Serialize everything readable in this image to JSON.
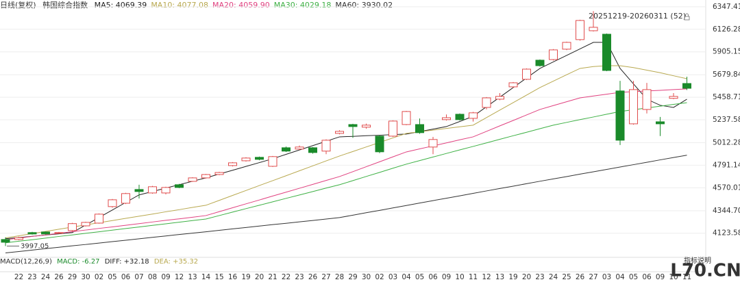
{
  "chart_data": {
    "type": "candlestick",
    "title": "日线(复权)",
    "subtitle": "韩国综合指数",
    "range_label": "20251219-20260311 (52)",
    "indicator_label": "MACD(12,26,9)",
    "indicator_values": [
      "MACD: -6.27",
      "DIFF: +32.18",
      "DEA: +35.32"
    ],
    "indicator_button": "指标说明",
    "watermark": "L70.CN",
    "up_color": "#e04b4b",
    "down_color": "#1a8a2a",
    "categories": [
      null,
      "22",
      "23",
      "24",
      "26",
      "29",
      "30",
      "02",
      "05",
      "06",
      "07",
      "08",
      "09",
      "12",
      "13",
      "14",
      "15",
      "16",
      "19",
      "20",
      "21",
      "22",
      "23",
      "26",
      "27",
      "28",
      "29",
      "30",
      "02",
      "03",
      "04",
      "05",
      "06",
      "09",
      "10",
      "11",
      "12",
      "13",
      "19",
      "20",
      "23",
      "24",
      "25",
      "26",
      "27",
      "03",
      "04",
      "05",
      "06",
      "09",
      "10",
      "11"
    ],
    "open": [
      4062,
      4062,
      4130,
      4136,
      4123,
      4150,
      4196,
      4223,
      4385,
      4418,
      4553,
      4519,
      4519,
      4600,
      4633,
      4667,
      4700,
      4788,
      4835,
      4869,
      4781,
      4963,
      4950,
      4963,
      4930,
      5104,
      5191,
      5165,
      5077,
      5077,
      5191,
      5191,
      4970,
      5239,
      5292,
      5252,
      5359,
      5440,
      5561,
      5635,
      5823,
      5829,
      5931,
      6025,
      6112,
      6078,
      5521,
      5198,
      5339,
      5218,
      5448,
      5594
    ],
    "high": [
      4083,
      4090,
      4137,
      4140,
      4136,
      4225,
      4236,
      4318,
      4460,
      4520,
      4600,
      4588,
      4580,
      4608,
      4673,
      4706,
      4727,
      4822,
      4870,
      4876,
      4882,
      4975,
      4985,
      4970,
      5045,
      5135,
      5198,
      5200,
      5085,
      5232,
      5325,
      5250,
      5070,
      5290,
      5300,
      5315,
      5460,
      5500,
      5608,
      5742,
      5830,
      5932,
      6005,
      6220,
      6305,
      6085,
      5620,
      5620,
      5600,
      5265,
      5500,
      5660
    ],
    "low": [
      3997.05,
      4055,
      4110,
      4112,
      4118,
      4140,
      4190,
      4218,
      4375,
      4410,
      4465,
      4512,
      4505,
      4566,
      4628,
      4660,
      4693,
      4780,
      4828,
      4840,
      4775,
      4922,
      4940,
      4905,
      4900,
      5095,
      5060,
      5150,
      4910,
      5070,
      5185,
      5100,
      4900,
      5230,
      5230,
      5220,
      5340,
      5430,
      5550,
      5628,
      5760,
      5820,
      5922,
      6015,
      6105,
      5715,
      4990,
      5190,
      5300,
      5078,
      5440,
      5530
    ],
    "close": [
      4035,
      4080,
      4116,
      4116,
      4130,
      4218,
      4230,
      4311,
      4452,
      4513,
      4533,
      4580,
      4573,
      4573,
      4667,
      4700,
      4720,
      4815,
      4862,
      4849,
      4876,
      4930,
      4970,
      4916,
      5037,
      5124,
      5171,
      5185,
      4923,
      5225,
      5319,
      5111,
      5044,
      5258,
      5239,
      5306,
      5453,
      5467,
      5601,
      5735,
      5769,
      5924,
      5998,
      6213,
      6146,
      5722,
      5037,
      5534,
      5534,
      5198,
      5467,
      5547
    ],
    "series": [
      {
        "name": "MA5",
        "label": "MA5: 4069.39",
        "color": "#222222",
        "values": [
          4069.39,
          4081,
          4093,
          4106,
          4118,
          4130,
          4204,
          4278,
          4352,
          4426,
          4500,
          4533,
          4567,
          4600,
          4634,
          4667,
          4705,
          4742,
          4780,
          4817,
          4855,
          4898,
          4941,
          4984,
          5027,
          5070,
          5075,
          5081,
          5086,
          5092,
          5097,
          5122,
          5146,
          5171,
          5221,
          5272,
          5366,
          5460,
          5554,
          5648,
          5742,
          5806,
          5870,
          5934,
          5998,
          5998,
          5742,
          5590,
          5440,
          5380,
          5359,
          5440
        ]
      },
      {
        "name": "MA10",
        "label": "MA10: 4077.08",
        "color": "#b8a84e",
        "values": [
          4077.08,
          4098,
          4120,
          4141,
          4163,
          4184,
          4205,
          4227,
          4248,
          4270,
          4291,
          4312,
          4334,
          4355,
          4377,
          4398,
          4446,
          4495,
          4543,
          4592,
          4640,
          4688,
          4737,
          4785,
          4834,
          4882,
          4926,
          4971,
          5015,
          5060,
          5104,
          5120,
          5136,
          5153,
          5169,
          5185,
          5259,
          5333,
          5406,
          5480,
          5554,
          5617,
          5680,
          5742,
          5760,
          5769,
          5769,
          5750,
          5725,
          5700,
          5670,
          5641
        ]
      },
      {
        "name": "MA20",
        "label": "MA20: 4059.90",
        "color": "#e0407f",
        "values": [
          4059.9,
          4076,
          4092,
          4107,
          4123,
          4139,
          4155,
          4171,
          4186,
          4202,
          4218,
          4234,
          4250,
          4265,
          4281,
          4297,
          4335,
          4374,
          4412,
          4450,
          4489,
          4527,
          4565,
          4603,
          4642,
          4680,
          4728,
          4777,
          4825,
          4874,
          4922,
          4952,
          4981,
          5011,
          5041,
          5070,
          5124,
          5178,
          5231,
          5285,
          5339,
          5377,
          5415,
          5453,
          5471,
          5489,
          5507,
          5514,
          5521,
          5527,
          5534,
          5541
        ]
      },
      {
        "name": "MA30",
        "label": "MA30: 4029.18",
        "color": "#3cb043",
        "values": [
          4029.18,
          4045,
          4060,
          4076,
          4092,
          4107,
          4123,
          4138,
          4154,
          4170,
          4185,
          4201,
          4216,
          4232,
          4248,
          4263,
          4297,
          4331,
          4365,
          4398,
          4432,
          4466,
          4499,
          4533,
          4567,
          4600,
          4640,
          4681,
          4721,
          4762,
          4802,
          4837,
          4872,
          4907,
          4942,
          4976,
          5011,
          5046,
          5081,
          5115,
          5150,
          5185,
          5212,
          5239,
          5265,
          5292,
          5319,
          5336,
          5354,
          5371,
          5389,
          5406
        ]
      },
      {
        "name": "MA60",
        "label": "MA60: 3930.02",
        "color": "#333333",
        "values": [
          3930.02,
          3944,
          3958,
          3972,
          3986,
          4000,
          4013,
          4027,
          4041,
          4055,
          4069,
          4083,
          4097,
          4111,
          4124,
          4138,
          4152,
          4166,
          4180,
          4194,
          4208,
          4221,
          4235,
          4249,
          4263,
          4277,
          4301,
          4325,
          4348,
          4372,
          4396,
          4420,
          4444,
          4467,
          4491,
          4515,
          4539,
          4563,
          4586,
          4610,
          4634,
          4657,
          4680,
          4704,
          4727,
          4750,
          4774,
          4797,
          4820,
          4844,
          4867,
          4890
        ]
      }
    ],
    "ylim": [
      3900,
      6414
    ],
    "yticks": [
      6347.41,
      6126.28,
      5905.15,
      5679.84,
      5458.71,
      5237.58,
      5012.28,
      4791.14,
      4570.01,
      {
        "value": 4344.7,
        "label": "4344.70"
      },
      4123.58
    ],
    "grid": true
  }
}
